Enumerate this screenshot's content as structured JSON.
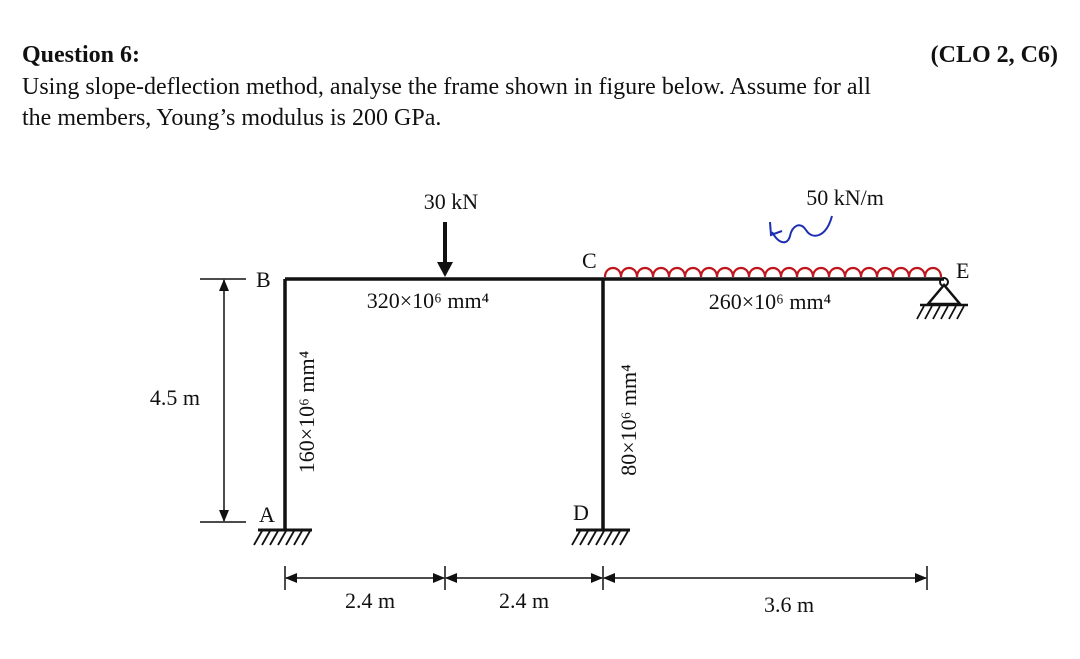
{
  "question": {
    "title": "Question 6:",
    "clo": "(CLO 2, C6)",
    "line1": "Using slope-deflection method, analyse the frame shown in figure below. Assume for all",
    "line2": "the members, Young’s modulus is 200 GPa."
  },
  "figure": {
    "point_load": "30 kN",
    "udl": "50 kN/m",
    "nodes": {
      "A": "A",
      "B": "B",
      "C": "C",
      "D": "D",
      "E": "E"
    },
    "moments_of_inertia": {
      "BC": "320×10⁶ mm⁴",
      "CE": "260×10⁶ mm⁴",
      "AB": "160×10⁶ mm⁴",
      "CD": "80×10⁶ mm⁴"
    },
    "dimensions": {
      "height": "4.5 m",
      "span1": "2.4 m",
      "span2": "2.4 m",
      "span3": "3.6 m"
    },
    "colors": {
      "frame": "#111111",
      "udl_loops": "#c0161b",
      "udl_arrow": "#1c2fb0"
    }
  }
}
